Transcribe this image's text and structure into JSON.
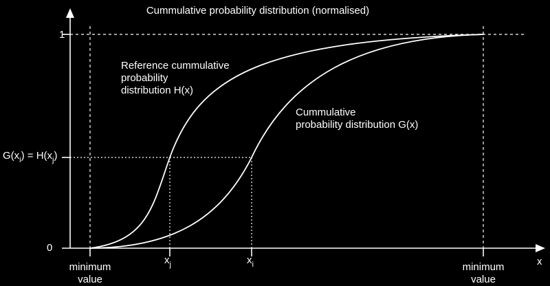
{
  "title": "Cummulative probability distribution (normalised)",
  "x_axis_label": "x",
  "y_ticks": {
    "top": "1",
    "bottom": "0"
  },
  "x_ticks": {
    "left_line1": "minimum",
    "left_line2": "value",
    "right_line1": "minimum",
    "right_line2": "value",
    "xj_base": "x",
    "xj_sub": "j",
    "xi_base": "x",
    "xi_sub": "i"
  },
  "equality_label": {
    "p1": "G(x",
    "s1": "i",
    "p2": ") = H(x",
    "s2": "j",
    "p3": ")"
  },
  "curves": {
    "reference": {
      "line1": "Reference cummulative",
      "line2": "probability",
      "line3": "distribution H(x)"
    },
    "actual": {
      "line1": "Cummulative",
      "line2": "probability distribution G(x)"
    }
  },
  "colors": {
    "background": "#000000",
    "foreground": "#ffffff"
  }
}
